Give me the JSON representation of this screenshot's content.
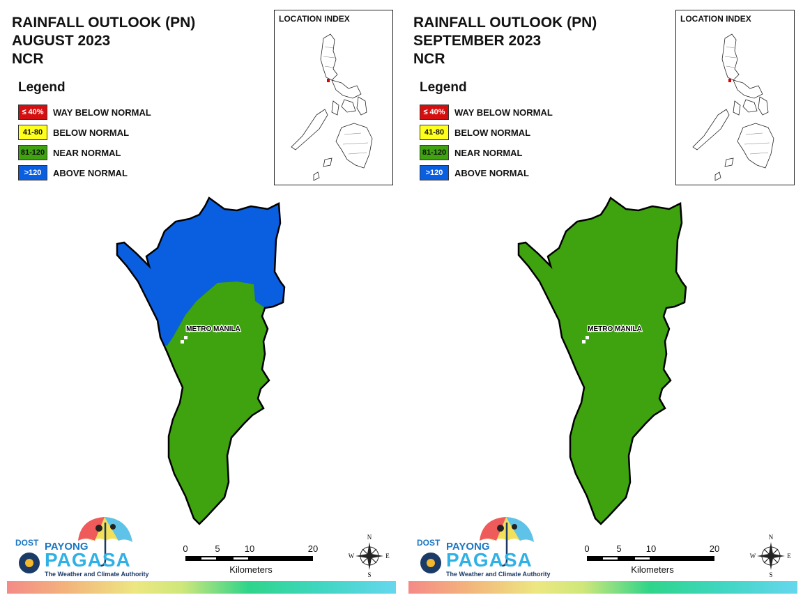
{
  "panels": [
    {
      "title_lines": [
        "RAINFALL OUTLOOK (PN)",
        "AUGUST 2023",
        "NCR"
      ],
      "map_label": "METRO MANILA",
      "category_regions": {
        "north": "above_normal",
        "south": "near_normal"
      }
    },
    {
      "title_lines": [
        "RAINFALL OUTLOOK (PN)",
        "SEPTEMBER 2023",
        "NCR"
      ],
      "map_label": "METRO MANILA",
      "category_regions": {
        "north": "near_normal",
        "south": "near_normal"
      }
    }
  ],
  "legend": {
    "heading": "Legend",
    "items": [
      {
        "key": "way_below_normal",
        "range": "≤ 40%",
        "label": "WAY BELOW NORMAL",
        "color": "#d50f0f",
        "text_color": "#ffffff"
      },
      {
        "key": "below_normal",
        "range": "41-80",
        "label": "BELOW NORMAL",
        "color": "#ffff1c",
        "text_color": "#111111"
      },
      {
        "key": "near_normal",
        "range": "81-120",
        "label": "NEAR NORMAL",
        "color": "#3ea30e",
        "text_color": "#111111"
      },
      {
        "key": "above_normal",
        "range": ">120",
        "label": "ABOVE NORMAL",
        "color": "#0a5ee0",
        "text_color": "#ffffff"
      }
    ]
  },
  "inset": {
    "title": "LOCATION INDEX"
  },
  "scale_bar": {
    "ticks": [
      "0",
      "5",
      "10",
      "20"
    ],
    "units": "Kilometers"
  },
  "compass": {
    "n": "N",
    "s": "S",
    "e": "E",
    "w": "W"
  },
  "logo": {
    "dost": "DOST",
    "payong": "PAYONG",
    "pagasa": "PAGASA",
    "tagline": "The Weather and Climate Authority"
  },
  "colors": {
    "outline": "#000000",
    "band": [
      "#f48a87",
      "#ede781",
      "#2fd58a",
      "#66d7ee"
    ]
  }
}
